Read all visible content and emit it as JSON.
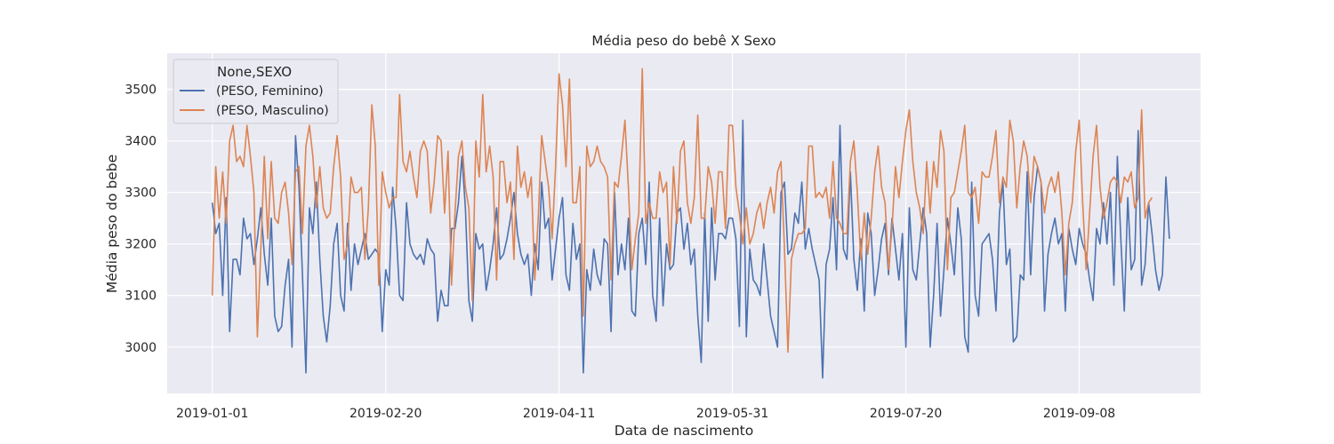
{
  "chart_data": {
    "type": "line",
    "title": "Média peso do bebê X Sexo",
    "xlabel": "Data de nascimento",
    "ylabel": "Média peso do bebe",
    "x_start": "2019-01-01",
    "x_ticks": [
      "2019-01-01",
      "2019-02-20",
      "2019-04-11",
      "2019-05-31",
      "2019-07-20",
      "2019-09-08"
    ],
    "xlim": [
      "2018-12-19",
      "2019-10-13"
    ],
    "y_ticks": [
      3000,
      3100,
      3200,
      3300,
      3400,
      3500
    ],
    "ylim": [
      2910,
      3570
    ],
    "grid": true,
    "legend": {
      "title": "None,SEXO",
      "position": "top-left"
    },
    "series": [
      {
        "name": "(PESO, Feminino)",
        "color": "#4c72b0",
        "values": [
          3280,
          3220,
          3240,
          3100,
          3290,
          3030,
          3170,
          3170,
          3140,
          3250,
          3210,
          3220,
          3160,
          3210,
          3270,
          3180,
          3120,
          3250,
          3060,
          3030,
          3040,
          3120,
          3170,
          3000,
          3410,
          3310,
          3140,
          2950,
          3270,
          3220,
          3320,
          3170,
          3060,
          3010,
          3080,
          3200,
          3240,
          3100,
          3070,
          3240,
          3110,
          3200,
          3160,
          3190,
          3220,
          3170,
          3180,
          3190,
          3180,
          3030,
          3150,
          3120,
          3310,
          3230,
          3100,
          3090,
          3280,
          3200,
          3180,
          3170,
          3180,
          3160,
          3210,
          3190,
          3180,
          3050,
          3110,
          3080,
          3080,
          3230,
          3230,
          3280,
          3370,
          3270,
          3090,
          3050,
          3220,
          3190,
          3200,
          3110,
          3150,
          3200,
          3270,
          3170,
          3180,
          3210,
          3250,
          3300,
          3220,
          3180,
          3160,
          3180,
          3100,
          3200,
          3150,
          3320,
          3230,
          3250,
          3130,
          3190,
          3250,
          3290,
          3140,
          3110,
          3240,
          3170,
          3200,
          2950,
          3150,
          3110,
          3190,
          3140,
          3120,
          3210,
          3200,
          3030,
          3300,
          3140,
          3200,
          3150,
          3250,
          3070,
          3060,
          3220,
          3250,
          3160,
          3320,
          3100,
          3050,
          3250,
          3080,
          3200,
          3150,
          3160,
          3260,
          3270,
          3190,
          3240,
          3160,
          3190,
          3060,
          2970,
          3260,
          3050,
          3270,
          3130,
          3220,
          3220,
          3210,
          3250,
          3250,
          3210,
          3040,
          3440,
          3020,
          3190,
          3130,
          3120,
          3100,
          3200,
          3130,
          3060,
          3030,
          3000,
          3300,
          3320,
          3180,
          3190,
          3260,
          3240,
          3320,
          3190,
          3230,
          3190,
          3160,
          3130,
          2940,
          3160,
          3190,
          3290,
          3150,
          3430,
          3190,
          3170,
          3340,
          3170,
          3110,
          3210,
          3070,
          3260,
          3220,
          3100,
          3150,
          3210,
          3240,
          3140,
          3250,
          3190,
          3130,
          3220,
          3000,
          3270,
          3150,
          3130,
          3200,
          3270,
          3220,
          3000,
          3100,
          3240,
          3060,
          3150,
          3250,
          3200,
          3140,
          3270,
          3210,
          3020,
          2990,
          3320,
          3100,
          3060,
          3200,
          3210,
          3220,
          3170,
          3070,
          3260,
          3320,
          3160,
          3190,
          3010,
          3020,
          3140,
          3130,
          3340,
          3140,
          3290,
          3350,
          3320,
          3070,
          3180,
          3220,
          3250,
          3200,
          3220,
          3070,
          3230,
          3190,
          3160,
          3230,
          3200,
          3180,
          3130,
          3090,
          3230,
          3200,
          3280,
          3200,
          3300,
          3120,
          3370,
          3210,
          3070,
          3290,
          3150,
          3170,
          3420,
          3120,
          3160,
          3280,
          3220,
          3150,
          3110,
          3140,
          3330,
          3210
        ]
      },
      {
        "name": "(PESO, Masculino)",
        "color": "#dd8452",
        "values": [
          3100,
          3350,
          3250,
          3340,
          3240,
          3400,
          3430,
          3360,
          3370,
          3350,
          3430,
          3370,
          3300,
          3020,
          3190,
          3370,
          3210,
          3360,
          3250,
          3240,
          3300,
          3320,
          3260,
          3160,
          3340,
          3350,
          3220,
          3390,
          3430,
          3370,
          3270,
          3350,
          3270,
          3250,
          3260,
          3350,
          3410,
          3330,
          3170,
          3200,
          3330,
          3300,
          3300,
          3310,
          3170,
          3270,
          3470,
          3390,
          3120,
          3340,
          3300,
          3270,
          3290,
          3290,
          3490,
          3360,
          3340,
          3380,
          3330,
          3290,
          3380,
          3400,
          3380,
          3260,
          3320,
          3410,
          3400,
          3260,
          3380,
          3120,
          3260,
          3370,
          3400,
          3310,
          3270,
          3090,
          3400,
          3330,
          3490,
          3340,
          3390,
          3330,
          3130,
          3360,
          3360,
          3280,
          3320,
          3170,
          3390,
          3310,
          3340,
          3290,
          3330,
          3130,
          3250,
          3410,
          3360,
          3310,
          3210,
          3350,
          3530,
          3470,
          3350,
          3520,
          3280,
          3280,
          3350,
          3060,
          3390,
          3350,
          3360,
          3390,
          3360,
          3350,
          3330,
          3130,
          3320,
          3310,
          3370,
          3440,
          3310,
          3150,
          3210,
          3260,
          3540,
          3240,
          3280,
          3250,
          3250,
          3340,
          3300,
          3320,
          3160,
          3350,
          3240,
          3380,
          3400,
          3280,
          3240,
          3290,
          3450,
          3250,
          3250,
          3350,
          3320,
          3240,
          3340,
          3340,
          3230,
          3430,
          3430,
          3310,
          3260,
          3200,
          3270,
          3200,
          3220,
          3260,
          3280,
          3230,
          3280,
          3310,
          3260,
          3340,
          3360,
          3190,
          2990,
          3170,
          3200,
          3220,
          3220,
          3230,
          3390,
          3390,
          3290,
          3300,
          3290,
          3310,
          3250,
          3360,
          3250,
          3240,
          3220,
          3220,
          3360,
          3400,
          3300,
          3170,
          3260,
          3180,
          3250,
          3340,
          3390,
          3310,
          3280,
          3150,
          3230,
          3350,
          3290,
          3360,
          3420,
          3460,
          3360,
          3300,
          3270,
          3220,
          3360,
          3260,
          3360,
          3310,
          3420,
          3380,
          3150,
          3290,
          3300,
          3340,
          3380,
          3430,
          3300,
          3290,
          3310,
          3240,
          3340,
          3330,
          3330,
          3370,
          3420,
          3280,
          3330,
          3310,
          3440,
          3400,
          3270,
          3350,
          3400,
          3370,
          3280,
          3370,
          3350,
          3320,
          3260,
          3310,
          3330,
          3300,
          3340,
          3260,
          3140,
          3240,
          3280,
          3380,
          3440,
          3280,
          3150,
          3260,
          3370,
          3430,
          3310,
          3250,
          3280,
          3320,
          3330,
          3320,
          3280,
          3330,
          3320,
          3340,
          3270,
          3290,
          3460,
          3250,
          3280,
          3290
        ]
      }
    ]
  }
}
